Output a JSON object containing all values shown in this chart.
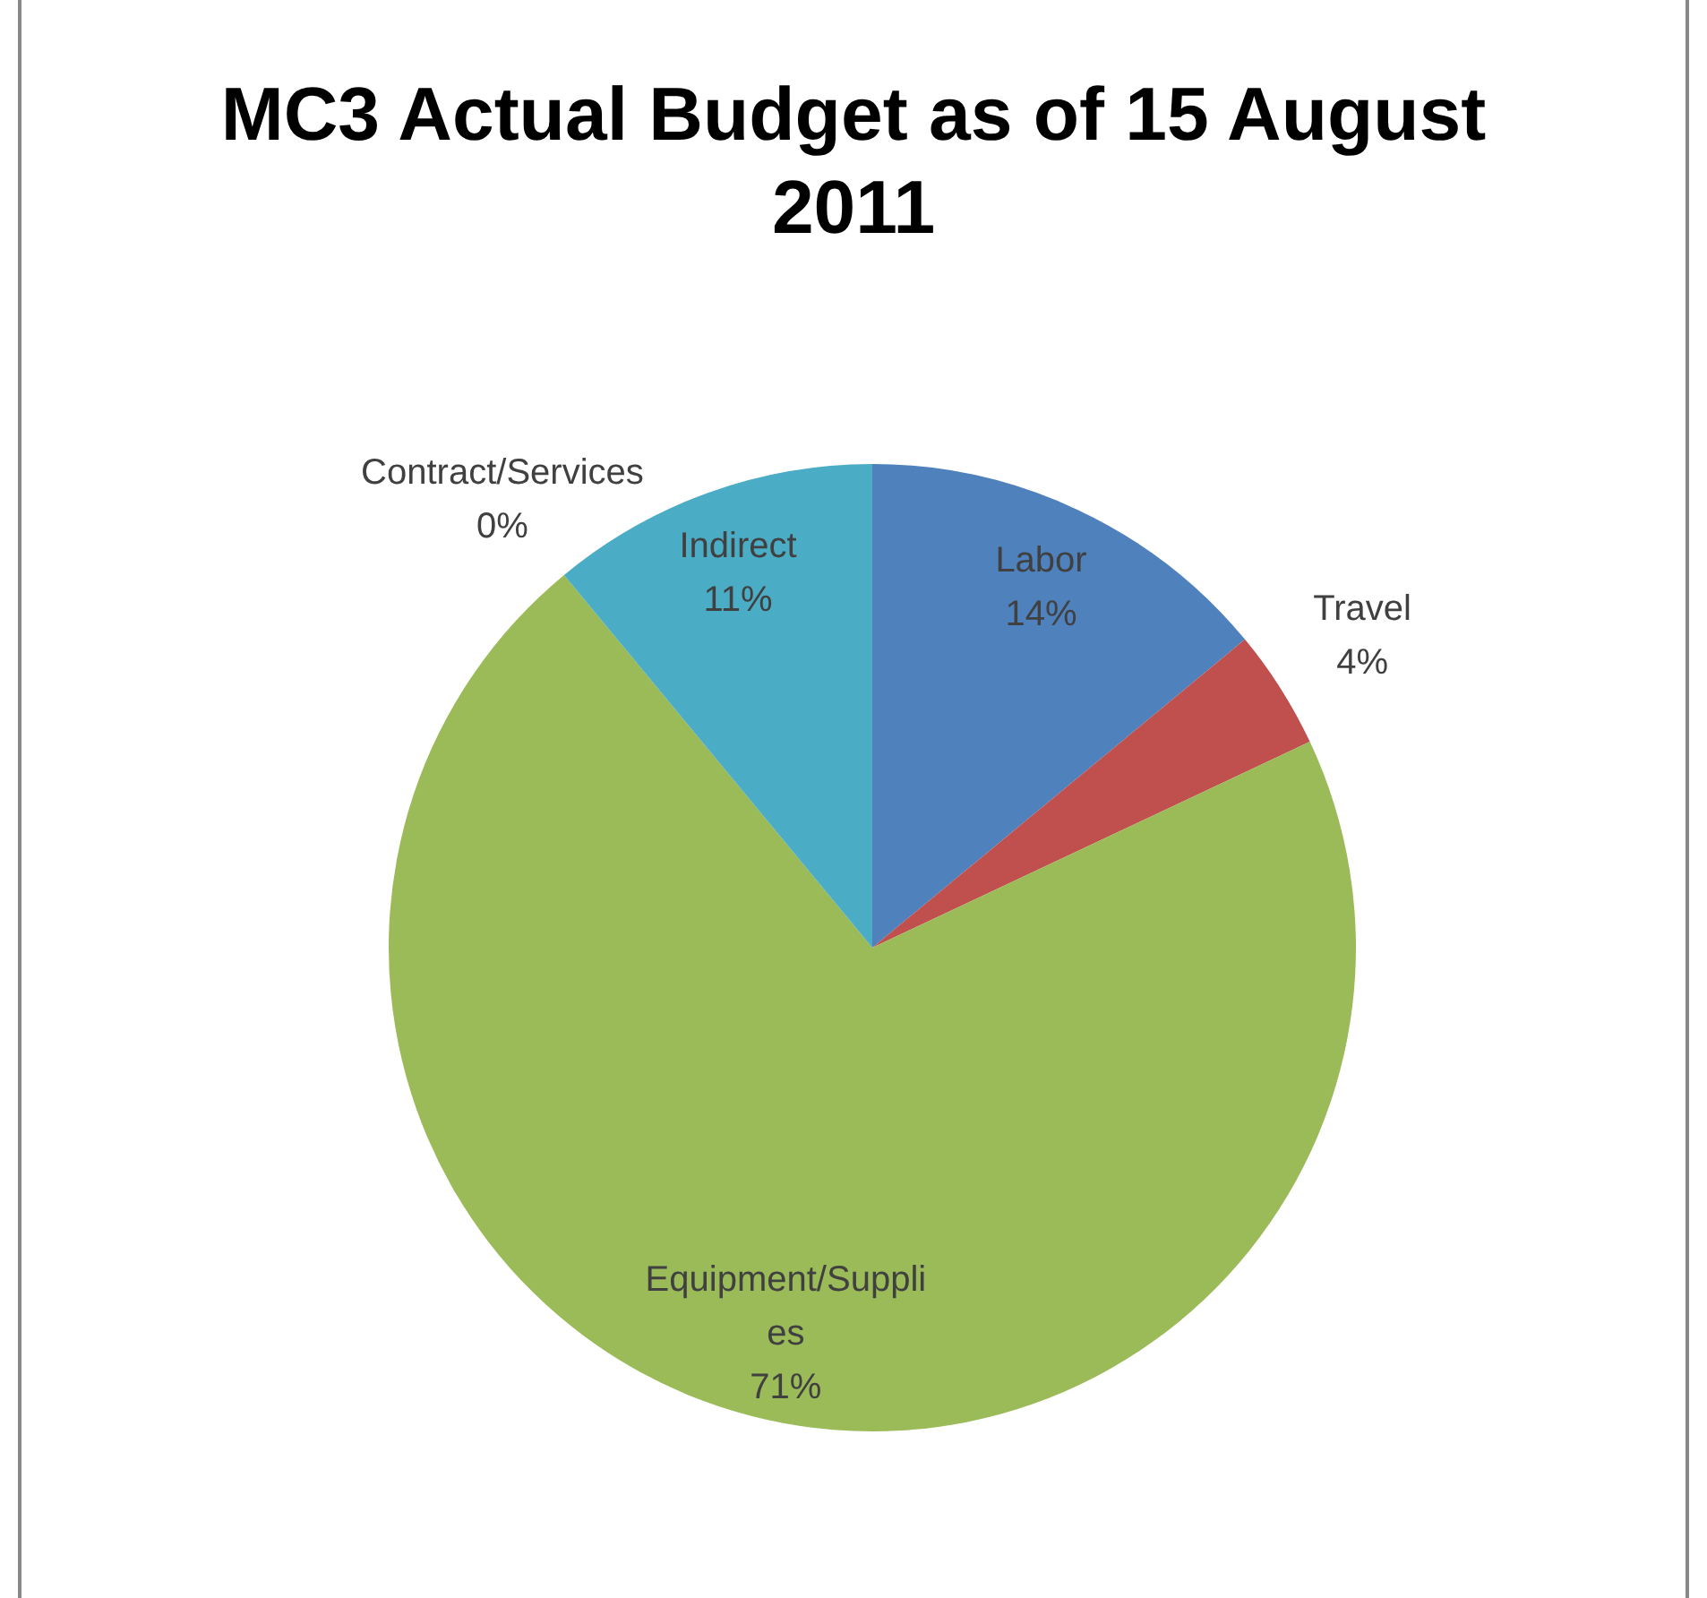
{
  "chart_data": {
    "type": "pie",
    "title": "MC3 Actual Budget as of 15 August 2011",
    "categories": [
      "Labor",
      "Travel",
      "Equipment/Supplies",
      "Contract/Services",
      "Indirect"
    ],
    "values": [
      14,
      4,
      71,
      0,
      11
    ],
    "value_labels": [
      "14%",
      "4%",
      "71%",
      "0%",
      "11%"
    ],
    "colors": [
      "#4f81bd",
      "#c0504d",
      "#9bbb59",
      "#8064a2",
      "#4bacc6"
    ],
    "legend": false
  }
}
